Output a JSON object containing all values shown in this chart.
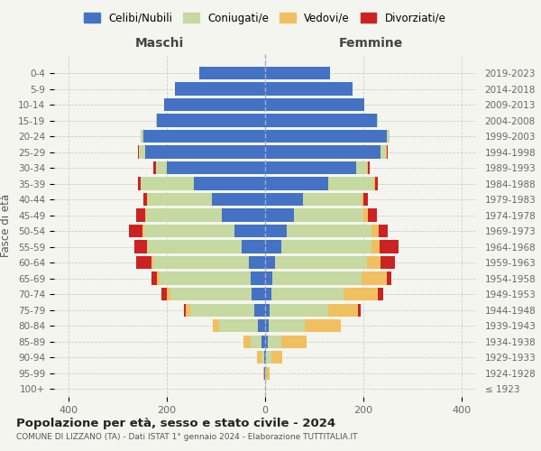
{
  "age_groups": [
    "100+",
    "95-99",
    "90-94",
    "85-89",
    "80-84",
    "75-79",
    "70-74",
    "65-69",
    "60-64",
    "55-59",
    "50-54",
    "45-49",
    "40-44",
    "35-39",
    "30-34",
    "25-29",
    "20-24",
    "15-19",
    "10-14",
    "5-9",
    "0-4"
  ],
  "birth_years": [
    "≤ 1923",
    "1924-1928",
    "1929-1933",
    "1934-1938",
    "1939-1943",
    "1944-1948",
    "1949-1953",
    "1954-1958",
    "1959-1963",
    "1964-1968",
    "1969-1973",
    "1974-1978",
    "1979-1983",
    "1984-1988",
    "1989-1993",
    "1994-1998",
    "1999-2003",
    "2004-2008",
    "2009-2013",
    "2014-2018",
    "2019-2023"
  ],
  "colors": {
    "celibe": "#4472c4",
    "coniugato": "#c5d9a0",
    "vedovo": "#f0c060",
    "divorziato": "#cc2222"
  },
  "maschi": {
    "celibe": [
      0,
      1,
      2,
      7,
      15,
      22,
      28,
      30,
      33,
      48,
      62,
      88,
      108,
      145,
      200,
      245,
      248,
      220,
      205,
      183,
      135
    ],
    "coniugato": [
      0,
      1,
      6,
      22,
      78,
      130,
      165,
      185,
      195,
      190,
      185,
      155,
      130,
      108,
      22,
      12,
      5,
      2,
      0,
      0,
      0
    ],
    "vedovo": [
      0,
      2,
      8,
      15,
      14,
      10,
      8,
      5,
      4,
      3,
      3,
      2,
      2,
      1,
      0,
      0,
      0,
      0,
      0,
      0,
      0
    ],
    "divorziato": [
      0,
      0,
      0,
      0,
      0,
      3,
      10,
      12,
      30,
      25,
      28,
      18,
      8,
      5,
      5,
      3,
      1,
      0,
      0,
      0,
      0
    ]
  },
  "femmine": {
    "nubile": [
      0,
      0,
      2,
      5,
      8,
      10,
      12,
      14,
      20,
      33,
      44,
      58,
      78,
      128,
      185,
      235,
      248,
      228,
      202,
      178,
      132
    ],
    "coniugato": [
      0,
      2,
      10,
      28,
      72,
      118,
      148,
      182,
      188,
      183,
      173,
      143,
      118,
      92,
      22,
      12,
      5,
      2,
      0,
      0,
      0
    ],
    "vedovo": [
      2,
      8,
      22,
      52,
      75,
      62,
      70,
      52,
      28,
      18,
      14,
      8,
      5,
      5,
      2,
      1,
      0,
      0,
      0,
      0,
      0
    ],
    "divorziato": [
      0,
      0,
      0,
      0,
      0,
      5,
      10,
      10,
      28,
      38,
      18,
      18,
      8,
      5,
      5,
      2,
      0,
      0,
      0,
      0,
      0
    ]
  },
  "xlim": 430,
  "title": "Popolazione per età, sesso e stato civile - 2024",
  "subtitle": "COMUNE DI LIZZANO (TA) - Dati ISTAT 1° gennaio 2024 - Elaborazione TUTTITALIA.IT",
  "xlabel_left": "Maschi",
  "xlabel_right": "Femmine",
  "ylabel": "Fasce di età",
  "legend_labels": [
    "Celibi/Nubili",
    "Coniugati/e",
    "Vedovi/e",
    "Divorziati/e"
  ],
  "background_color": "#f5f5f0"
}
